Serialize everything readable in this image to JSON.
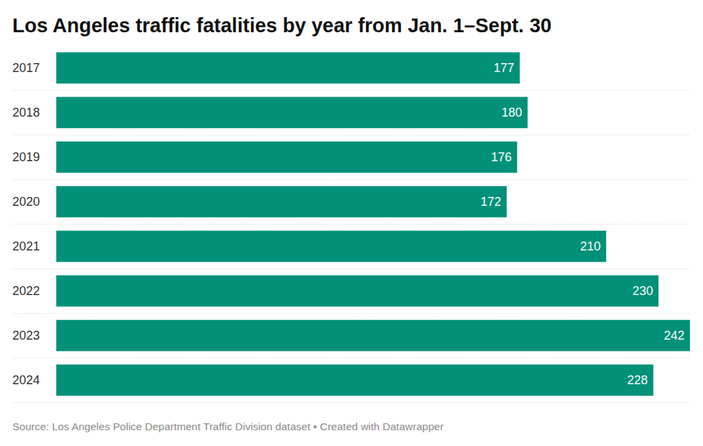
{
  "chart_data": {
    "type": "bar",
    "orientation": "horizontal",
    "title": "Los Angeles traffic fatalities by year from Jan. 1–Sept. 30",
    "source": "Source: Los Angeles Police Department Traffic Division dataset • Created with Datawrapper",
    "categories": [
      "2017",
      "2018",
      "2019",
      "2020",
      "2021",
      "2022",
      "2023",
      "2024"
    ],
    "values": [
      177,
      180,
      176,
      172,
      210,
      230,
      242,
      228
    ],
    "color": "#009178",
    "xlim": [
      0,
      242
    ],
    "data_labels": true,
    "tick_labels": "y"
  }
}
